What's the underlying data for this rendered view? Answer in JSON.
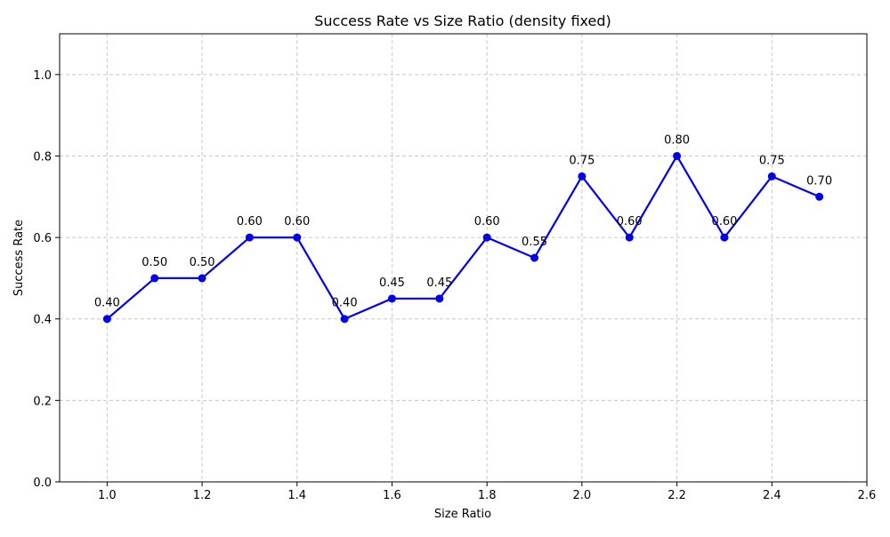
{
  "chart_data": {
    "type": "line",
    "title": "Success Rate vs Size Ratio (density fixed)",
    "xlabel": "Size Ratio",
    "ylabel": "Success Rate",
    "xlim": [
      0.9,
      2.6
    ],
    "ylim": [
      0.0,
      1.1
    ],
    "x_ticks": [
      1.0,
      1.2,
      1.4,
      1.6,
      1.8,
      2.0,
      2.2,
      2.4,
      2.6
    ],
    "x_tick_labels": [
      "1.0",
      "1.2",
      "1.4",
      "1.6",
      "1.8",
      "2.0",
      "2.2",
      "2.4",
      "2.6"
    ],
    "y_ticks": [
      0.0,
      0.2,
      0.4,
      0.6,
      0.8,
      1.0
    ],
    "y_tick_labels": [
      "0.0",
      "0.2",
      "0.4",
      "0.6",
      "0.8",
      "1.0"
    ],
    "grid": true,
    "x": [
      1.0,
      1.1,
      1.2,
      1.3,
      1.4,
      1.5,
      1.6,
      1.7,
      1.8,
      1.9,
      2.0,
      2.1,
      2.2,
      2.3,
      2.4,
      2.5
    ],
    "series": [
      {
        "values": [
          0.4,
          0.5,
          0.5,
          0.6,
          0.6,
          0.4,
          0.45,
          0.45,
          0.6,
          0.55,
          0.75,
          0.6,
          0.8,
          0.6,
          0.75,
          0.7
        ],
        "labels": [
          "0.40",
          "0.50",
          "0.50",
          "0.60",
          "0.60",
          "0.40",
          "0.45",
          "0.45",
          "0.60",
          "0.55",
          "0.75",
          "0.60",
          "0.80",
          "0.60",
          "0.75",
          "0.70"
        ],
        "color": "#0000ee",
        "marker": "circle"
      }
    ]
  }
}
